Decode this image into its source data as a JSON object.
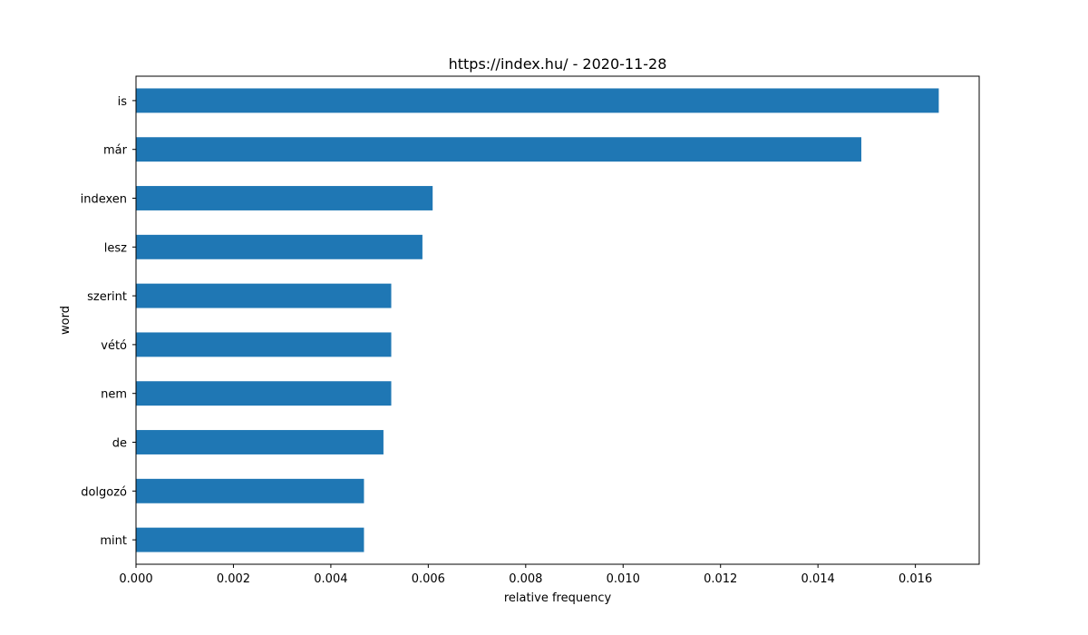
{
  "chart_data": {
    "type": "bar",
    "orientation": "horizontal",
    "title": "https://index.hu/ - 2020-11-28",
    "xlabel": "relative frequency",
    "ylabel": "word",
    "categories": [
      "is",
      "már",
      "indexen",
      "lesz",
      "szerint",
      "vétó",
      "nem",
      "de",
      "dolgozó",
      "mint"
    ],
    "values": [
      0.01648,
      0.01489,
      0.00609,
      0.00588,
      0.00524,
      0.00524,
      0.00524,
      0.00508,
      0.00468,
      0.00468
    ],
    "xticks": [
      "0.000",
      "0.002",
      "0.004",
      "0.006",
      "0.008",
      "0.010",
      "0.012",
      "0.014",
      "0.016"
    ],
    "xlim": [
      0,
      0.01731
    ],
    "grid": false,
    "legend": "none",
    "bar_color": "#1f77b4"
  }
}
